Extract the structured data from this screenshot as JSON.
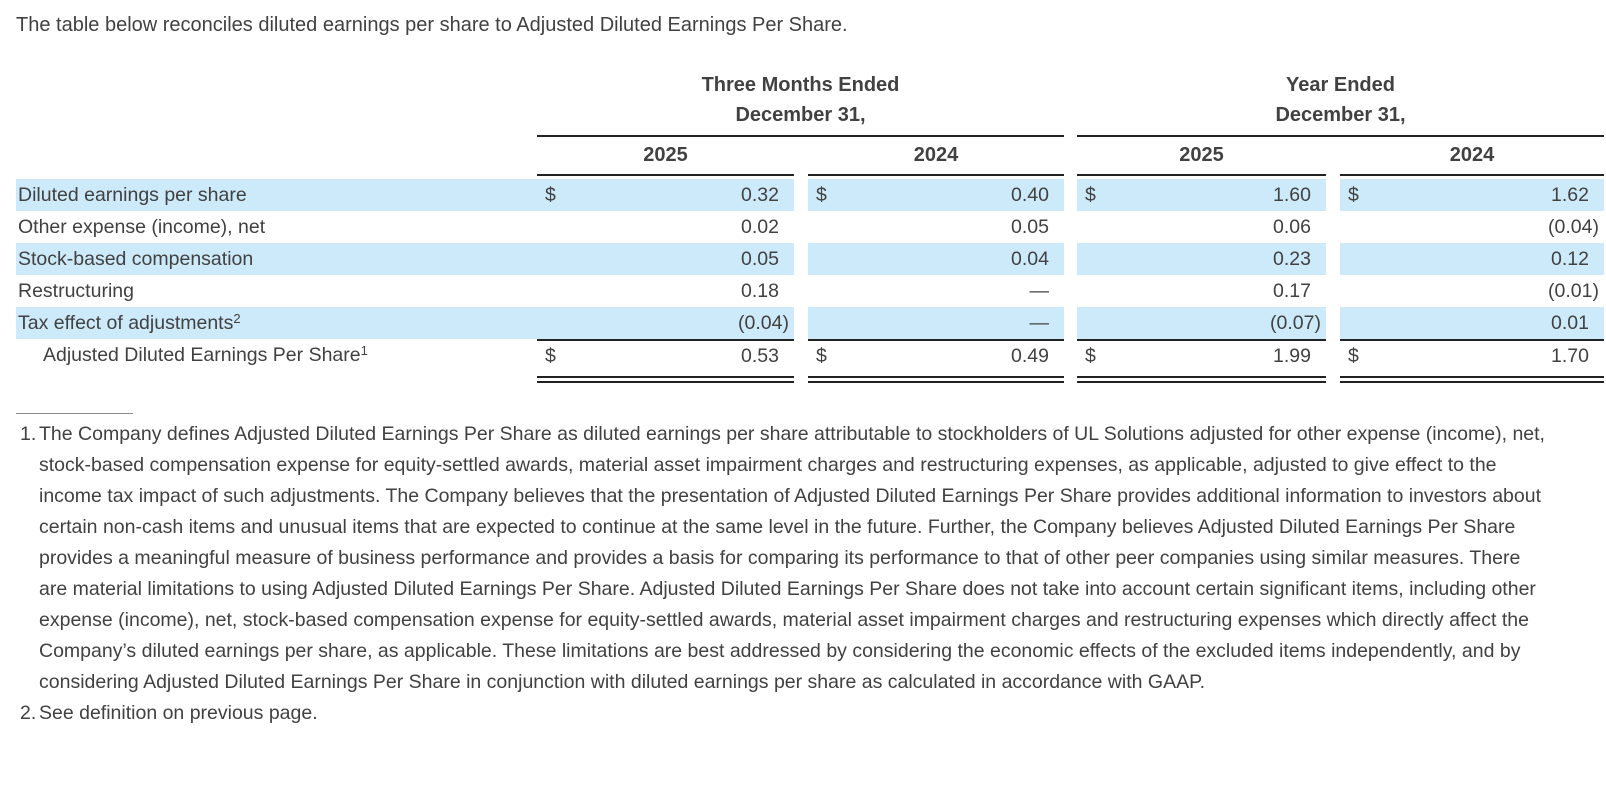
{
  "intro": "The table below reconciles diluted earnings per share to Adjusted Diluted Earnings Per Share.",
  "table": {
    "col_groups": [
      {
        "line1": "Three Months Ended",
        "line2": "December 31,",
        "years": [
          "2025",
          "2024"
        ]
      },
      {
        "line1": "Year Ended",
        "line2": "December 31,",
        "years": [
          "2025",
          "2024"
        ]
      }
    ],
    "rows": [
      {
        "label": "Diluted earnings per share",
        "sup": "",
        "indent": false,
        "dollar": true,
        "shaded": true,
        "total": false,
        "values": [
          "0.32",
          "0.40",
          "1.60",
          "1.62"
        ]
      },
      {
        "label": "Other expense (income), net",
        "sup": "",
        "indent": false,
        "dollar": false,
        "shaded": false,
        "total": false,
        "values": [
          "0.02",
          "0.05",
          "0.06",
          "(0.04)"
        ]
      },
      {
        "label": "Stock-based compensation",
        "sup": "",
        "indent": false,
        "dollar": false,
        "shaded": true,
        "total": false,
        "values": [
          "0.05",
          "0.04",
          "0.23",
          "0.12"
        ]
      },
      {
        "label": "Restructuring",
        "sup": "",
        "indent": false,
        "dollar": false,
        "shaded": false,
        "total": false,
        "values": [
          "0.18",
          "—",
          "0.17",
          "(0.01)"
        ]
      },
      {
        "label": "Tax effect of adjustments",
        "sup": "2",
        "indent": false,
        "dollar": false,
        "shaded": true,
        "total": false,
        "values": [
          "(0.04)",
          "—",
          "(0.07)",
          "0.01"
        ]
      },
      {
        "label": "Adjusted Diluted Earnings Per Share",
        "sup": "1",
        "indent": true,
        "dollar": true,
        "shaded": false,
        "total": true,
        "values": [
          "0.53",
          "0.49",
          "1.99",
          "1.70"
        ]
      }
    ]
  },
  "footnotes": [
    {
      "num": "1.",
      "text": "The Company defines Adjusted Diluted Earnings Per Share as diluted earnings per share attributable to stockholders of UL Solutions adjusted for other expense (income), net, stock-based compensation expense for equity-settled awards, material asset impairment charges and restructuring expenses, as applicable, adjusted to give effect to the income tax impact of such adjustments. The Company believes that the presentation of Adjusted Diluted Earnings Per Share provides additional information to investors about certain non-cash items and unusual items that are expected to continue at the same level in the future. Further, the Company believes Adjusted Diluted Earnings Per Share provides a meaningful measure of business performance and provides a basis for comparing its performance to that of other peer companies using similar measures. There are material limitations to using Adjusted Diluted Earnings Per Share. Adjusted Diluted Earnings Per Share does not take into account certain significant items, including other expense (income), net, stock-based compensation expense for equity-settled awards, material asset impairment charges and restructuring expenses which directly affect the Company’s diluted earnings per share, as applicable. These limitations are best addressed by considering the economic effects of the excluded items independently, and by considering Adjusted Diluted Earnings Per Share in conjunction with diluted earnings per share as calculated in accordance with GAAP."
    },
    {
      "num": "2.",
      "text": "See definition on previous page."
    }
  ],
  "colors": {
    "row_highlight": "#cdeafb",
    "rule": "#222222",
    "text": "#414141"
  }
}
